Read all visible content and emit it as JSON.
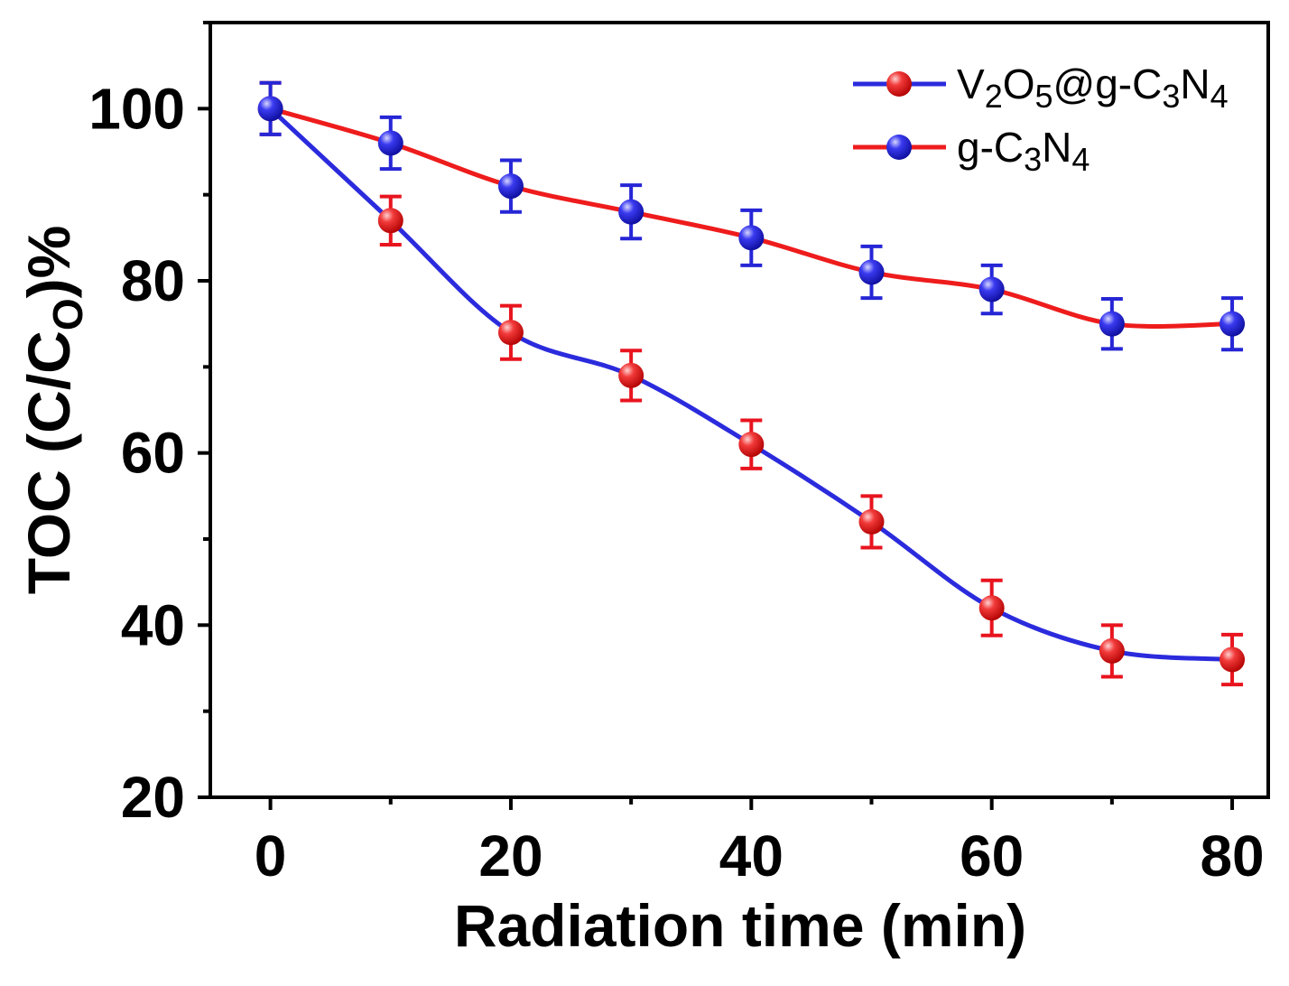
{
  "chart_data": {
    "type": "line",
    "title": "",
    "xlabel": "Radiation time (min)",
    "ylabel": {
      "prefix": "TOC (C/C",
      "sub": "O",
      "suffix": ")%"
    },
    "xlim": [
      -5,
      83
    ],
    "ylim": [
      20,
      110
    ],
    "xticks": [
      0,
      20,
      40,
      60,
      80
    ],
    "yticks": [
      20,
      40,
      60,
      80,
      100
    ],
    "x": [
      0,
      10,
      20,
      30,
      40,
      50,
      60,
      70,
      80
    ],
    "series": [
      {
        "name": "V2O5@g-C3N4",
        "legend_parts": [
          [
            "V",
            ""
          ],
          [
            "2",
            "sub"
          ],
          [
            "O",
            ""
          ],
          [
            "5",
            "sub"
          ],
          [
            "@g-C",
            ""
          ],
          [
            "3",
            "sub"
          ],
          [
            "N",
            ""
          ],
          [
            "4",
            "sub"
          ]
        ],
        "values": [
          100,
          87,
          74,
          69,
          61,
          52,
          42,
          37,
          36
        ],
        "errors": [
          3,
          2.8,
          3.1,
          2.9,
          2.8,
          3.0,
          3.2,
          3.0,
          2.9
        ],
        "line_color": "#2b2bdd",
        "marker_color": "#e8141e"
      },
      {
        "name": "g-C3N4",
        "legend_parts": [
          [
            "g-C",
            ""
          ],
          [
            "3",
            "sub"
          ],
          [
            "N",
            ""
          ],
          [
            "4",
            "sub"
          ]
        ],
        "values": [
          100,
          96,
          91,
          88,
          85,
          81,
          79,
          75,
          75
        ],
        "errors": [
          3,
          3,
          3,
          3.1,
          3.2,
          3.0,
          2.8,
          2.9,
          3.0
        ],
        "line_color": "#ee1c1c",
        "marker_color": "#2626d6"
      }
    ],
    "legend_position": "top-right",
    "grid": false
  }
}
